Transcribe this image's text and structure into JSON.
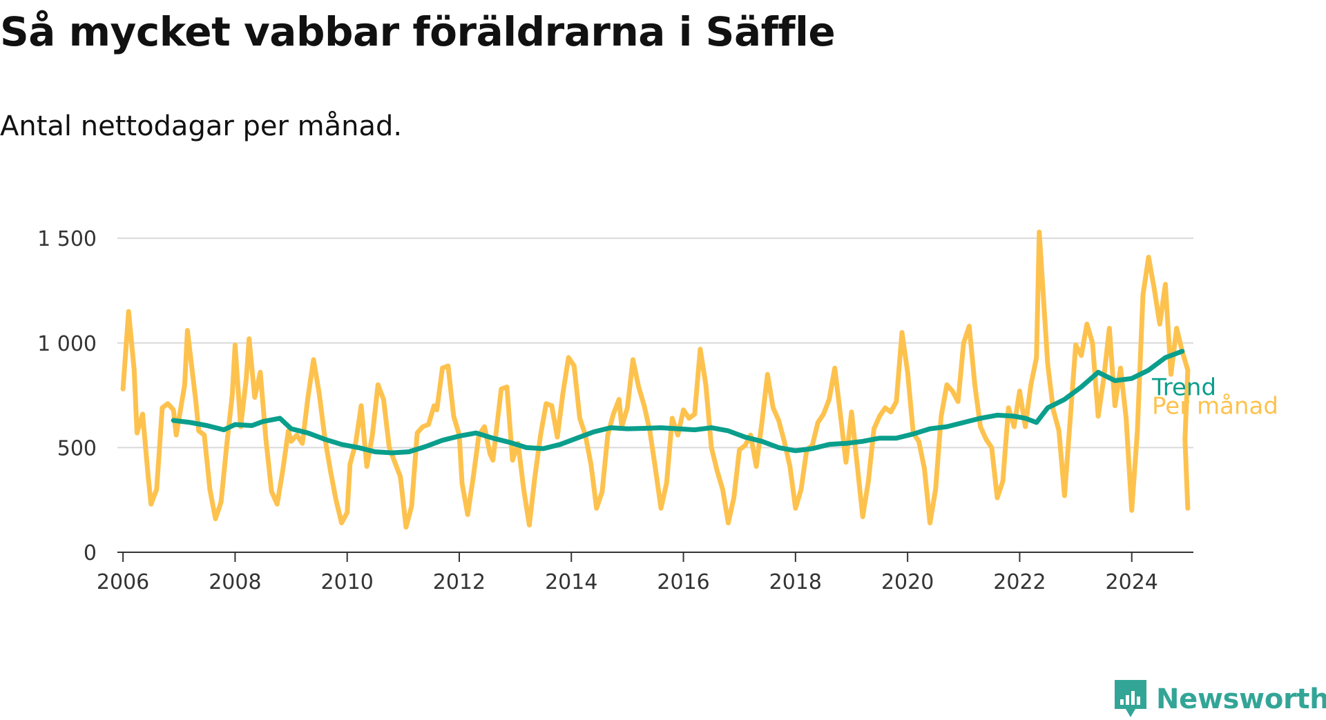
{
  "title": "Så mycket vabbar föräldrarna i Säffle",
  "subtitle": "Antal nettodagar per månad.",
  "brand": {
    "name": "Newsworthy",
    "icon": "newsworthy-logo-icon",
    "color": "#33a597"
  },
  "colors": {
    "trend": "#0a9e8c",
    "monthly": "#fdc24e",
    "grid": "#d9d9d9",
    "axis": "#333333"
  },
  "chart_data": {
    "type": "line",
    "title": "Så mycket vabbar föräldrarna i Säffle",
    "subtitle": "Antal nettodagar per månad.",
    "xlabel": "",
    "ylabel": "",
    "xlim": [
      2005.9,
      2025.1
    ],
    "ylim": [
      0,
      1550
    ],
    "grid": true,
    "y_ticks": [
      {
        "value": 0,
        "label": "0"
      },
      {
        "value": 500,
        "label": "500"
      },
      {
        "value": 1000,
        "label": "1 000"
      },
      {
        "value": 1500,
        "label": "1 500"
      }
    ],
    "x_ticks": [
      {
        "value": 2006,
        "label": "2006"
      },
      {
        "value": 2008,
        "label": "2008"
      },
      {
        "value": 2010,
        "label": "2010"
      },
      {
        "value": 2012,
        "label": "2012"
      },
      {
        "value": 2014,
        "label": "2014"
      },
      {
        "value": 2016,
        "label": "2016"
      },
      {
        "value": 2018,
        "label": "2018"
      },
      {
        "value": 2020,
        "label": "2020"
      },
      {
        "value": 2022,
        "label": "2022"
      },
      {
        "value": 2024,
        "label": "2024"
      }
    ],
    "legend": "inline-right",
    "series": [
      {
        "name": "Per månad",
        "color": "#fdc24e",
        "points": [
          [
            2006.0,
            780
          ],
          [
            2006.1,
            1150
          ],
          [
            2006.2,
            870
          ],
          [
            2006.25,
            570
          ],
          [
            2006.35,
            660
          ],
          [
            2006.45,
            360
          ],
          [
            2006.5,
            230
          ],
          [
            2006.6,
            300
          ],
          [
            2006.7,
            690
          ],
          [
            2006.8,
            710
          ],
          [
            2006.9,
            680
          ],
          [
            2006.95,
            560
          ],
          [
            2007.1,
            800
          ],
          [
            2007.15,
            1060
          ],
          [
            2007.3,
            720
          ],
          [
            2007.35,
            580
          ],
          [
            2007.45,
            560
          ],
          [
            2007.55,
            300
          ],
          [
            2007.65,
            160
          ],
          [
            2007.75,
            240
          ],
          [
            2007.85,
            510
          ],
          [
            2007.95,
            750
          ],
          [
            2008.0,
            990
          ],
          [
            2008.1,
            600
          ],
          [
            2008.2,
            830
          ],
          [
            2008.25,
            1020
          ],
          [
            2008.35,
            740
          ],
          [
            2008.45,
            860
          ],
          [
            2008.55,
            540
          ],
          [
            2008.65,
            290
          ],
          [
            2008.75,
            230
          ],
          [
            2008.85,
            390
          ],
          [
            2008.95,
            580
          ],
          [
            2009.0,
            530
          ],
          [
            2009.1,
            560
          ],
          [
            2009.2,
            520
          ],
          [
            2009.3,
            740
          ],
          [
            2009.4,
            920
          ],
          [
            2009.5,
            760
          ],
          [
            2009.6,
            550
          ],
          [
            2009.7,
            390
          ],
          [
            2009.8,
            250
          ],
          [
            2009.9,
            140
          ],
          [
            2010.0,
            190
          ],
          [
            2010.05,
            420
          ],
          [
            2010.15,
            520
          ],
          [
            2010.25,
            700
          ],
          [
            2010.35,
            410
          ],
          [
            2010.45,
            560
          ],
          [
            2010.55,
            800
          ],
          [
            2010.65,
            730
          ],
          [
            2010.75,
            500
          ],
          [
            2010.85,
            430
          ],
          [
            2010.95,
            360
          ],
          [
            2011.05,
            120
          ],
          [
            2011.15,
            220
          ],
          [
            2011.25,
            570
          ],
          [
            2011.35,
            600
          ],
          [
            2011.45,
            610
          ],
          [
            2011.55,
            700
          ],
          [
            2011.6,
            680
          ],
          [
            2011.7,
            880
          ],
          [
            2011.8,
            890
          ],
          [
            2011.9,
            650
          ],
          [
            2012.0,
            560
          ],
          [
            2012.05,
            330
          ],
          [
            2012.15,
            180
          ],
          [
            2012.25,
            360
          ],
          [
            2012.35,
            560
          ],
          [
            2012.45,
            600
          ],
          [
            2012.55,
            470
          ],
          [
            2012.6,
            440
          ],
          [
            2012.75,
            780
          ],
          [
            2012.85,
            790
          ],
          [
            2012.95,
            440
          ],
          [
            2013.05,
            520
          ],
          [
            2013.15,
            300
          ],
          [
            2013.25,
            130
          ],
          [
            2013.35,
            360
          ],
          [
            2013.45,
            560
          ],
          [
            2013.55,
            710
          ],
          [
            2013.65,
            700
          ],
          [
            2013.75,
            550
          ],
          [
            2013.85,
            760
          ],
          [
            2013.95,
            930
          ],
          [
            2014.05,
            890
          ],
          [
            2014.15,
            640
          ],
          [
            2014.25,
            560
          ],
          [
            2014.35,
            420
          ],
          [
            2014.45,
            210
          ],
          [
            2014.55,
            290
          ],
          [
            2014.65,
            560
          ],
          [
            2014.75,
            660
          ],
          [
            2014.85,
            730
          ],
          [
            2014.9,
            600
          ],
          [
            2015.0,
            690
          ],
          [
            2015.1,
            920
          ],
          [
            2015.2,
            790
          ],
          [
            2015.3,
            700
          ],
          [
            2015.4,
            580
          ],
          [
            2015.5,
            400
          ],
          [
            2015.6,
            210
          ],
          [
            2015.7,
            330
          ],
          [
            2015.8,
            640
          ],
          [
            2015.9,
            560
          ],
          [
            2016.0,
            680
          ],
          [
            2016.1,
            640
          ],
          [
            2016.2,
            660
          ],
          [
            2016.3,
            970
          ],
          [
            2016.4,
            800
          ],
          [
            2016.5,
            500
          ],
          [
            2016.6,
            390
          ],
          [
            2016.7,
            300
          ],
          [
            2016.8,
            140
          ],
          [
            2016.9,
            260
          ],
          [
            2017.0,
            490
          ],
          [
            2017.1,
            510
          ],
          [
            2017.2,
            560
          ],
          [
            2017.3,
            410
          ],
          [
            2017.4,
            620
          ],
          [
            2017.5,
            850
          ],
          [
            2017.6,
            690
          ],
          [
            2017.7,
            630
          ],
          [
            2017.8,
            530
          ],
          [
            2017.9,
            410
          ],
          [
            2018.0,
            210
          ],
          [
            2018.1,
            300
          ],
          [
            2018.2,
            490
          ],
          [
            2018.3,
            510
          ],
          [
            2018.4,
            620
          ],
          [
            2018.5,
            660
          ],
          [
            2018.6,
            730
          ],
          [
            2018.7,
            880
          ],
          [
            2018.8,
            660
          ],
          [
            2018.9,
            430
          ],
          [
            2019.0,
            670
          ],
          [
            2019.1,
            420
          ],
          [
            2019.2,
            170
          ],
          [
            2019.3,
            340
          ],
          [
            2019.4,
            590
          ],
          [
            2019.5,
            650
          ],
          [
            2019.6,
            690
          ],
          [
            2019.7,
            670
          ],
          [
            2019.8,
            720
          ],
          [
            2019.9,
            1050
          ],
          [
            2020.0,
            860
          ],
          [
            2020.1,
            570
          ],
          [
            2020.2,
            530
          ],
          [
            2020.3,
            400
          ],
          [
            2020.4,
            140
          ],
          [
            2020.5,
            300
          ],
          [
            2020.6,
            650
          ],
          [
            2020.7,
            800
          ],
          [
            2020.8,
            770
          ],
          [
            2020.9,
            720
          ],
          [
            2021.0,
            1000
          ],
          [
            2021.1,
            1080
          ],
          [
            2021.2,
            800
          ],
          [
            2021.3,
            600
          ],
          [
            2021.4,
            540
          ],
          [
            2021.5,
            500
          ],
          [
            2021.6,
            260
          ],
          [
            2021.7,
            340
          ],
          [
            2021.8,
            690
          ],
          [
            2021.9,
            600
          ],
          [
            2022.0,
            770
          ],
          [
            2022.1,
            600
          ],
          [
            2022.2,
            800
          ],
          [
            2022.3,
            930
          ],
          [
            2022.35,
            1530
          ],
          [
            2022.5,
            900
          ],
          [
            2022.6,
            680
          ],
          [
            2022.7,
            580
          ],
          [
            2022.8,
            270
          ],
          [
            2022.9,
            630
          ],
          [
            2023.0,
            990
          ],
          [
            2023.1,
            940
          ],
          [
            2023.2,
            1090
          ],
          [
            2023.3,
            1000
          ],
          [
            2023.4,
            650
          ],
          [
            2023.5,
            830
          ],
          [
            2023.6,
            1070
          ],
          [
            2023.7,
            700
          ],
          [
            2023.8,
            880
          ],
          [
            2023.9,
            640
          ],
          [
            2024.0,
            200
          ],
          [
            2024.1,
            580
          ],
          [
            2024.2,
            1230
          ],
          [
            2024.3,
            1410
          ],
          [
            2024.4,
            1260
          ],
          [
            2024.5,
            1090
          ],
          [
            2024.6,
            1280
          ],
          [
            2024.7,
            850
          ],
          [
            2024.8,
            1070
          ],
          [
            2024.9,
            960
          ],
          [
            2025.0,
            870
          ],
          [
            2024.95,
            540
          ],
          [
            2025.0,
            210
          ]
        ]
      },
      {
        "name": "Trend",
        "color": "#0a9e8c",
        "points": [
          [
            2006.9,
            630
          ],
          [
            2007.2,
            620
          ],
          [
            2007.5,
            605
          ],
          [
            2007.8,
            585
          ],
          [
            2008.0,
            610
          ],
          [
            2008.3,
            605
          ],
          [
            2008.5,
            625
          ],
          [
            2008.8,
            640
          ],
          [
            2009.0,
            590
          ],
          [
            2009.3,
            570
          ],
          [
            2009.6,
            540
          ],
          [
            2009.9,
            515
          ],
          [
            2010.2,
            500
          ],
          [
            2010.5,
            480
          ],
          [
            2010.8,
            475
          ],
          [
            2011.1,
            480
          ],
          [
            2011.4,
            505
          ],
          [
            2011.7,
            535
          ],
          [
            2012.0,
            555
          ],
          [
            2012.3,
            570
          ],
          [
            2012.6,
            545
          ],
          [
            2012.9,
            525
          ],
          [
            2013.2,
            500
          ],
          [
            2013.5,
            495
          ],
          [
            2013.8,
            515
          ],
          [
            2014.1,
            545
          ],
          [
            2014.4,
            575
          ],
          [
            2014.7,
            595
          ],
          [
            2015.0,
            590
          ],
          [
            2015.3,
            592
          ],
          [
            2015.6,
            595
          ],
          [
            2015.9,
            590
          ],
          [
            2016.2,
            585
          ],
          [
            2016.5,
            595
          ],
          [
            2016.8,
            580
          ],
          [
            2017.1,
            550
          ],
          [
            2017.4,
            530
          ],
          [
            2017.7,
            500
          ],
          [
            2018.0,
            485
          ],
          [
            2018.3,
            495
          ],
          [
            2018.6,
            515
          ],
          [
            2018.9,
            520
          ],
          [
            2019.2,
            530
          ],
          [
            2019.5,
            545
          ],
          [
            2019.8,
            545
          ],
          [
            2020.1,
            565
          ],
          [
            2020.4,
            590
          ],
          [
            2020.7,
            600
          ],
          [
            2021.0,
            620
          ],
          [
            2021.3,
            640
          ],
          [
            2021.6,
            655
          ],
          [
            2021.9,
            650
          ],
          [
            2022.1,
            640
          ],
          [
            2022.3,
            620
          ],
          [
            2022.5,
            690
          ],
          [
            2022.8,
            730
          ],
          [
            2023.1,
            790
          ],
          [
            2023.4,
            860
          ],
          [
            2023.7,
            820
          ],
          [
            2024.0,
            830
          ],
          [
            2024.3,
            870
          ],
          [
            2024.6,
            930
          ],
          [
            2024.9,
            960
          ]
        ]
      }
    ]
  }
}
